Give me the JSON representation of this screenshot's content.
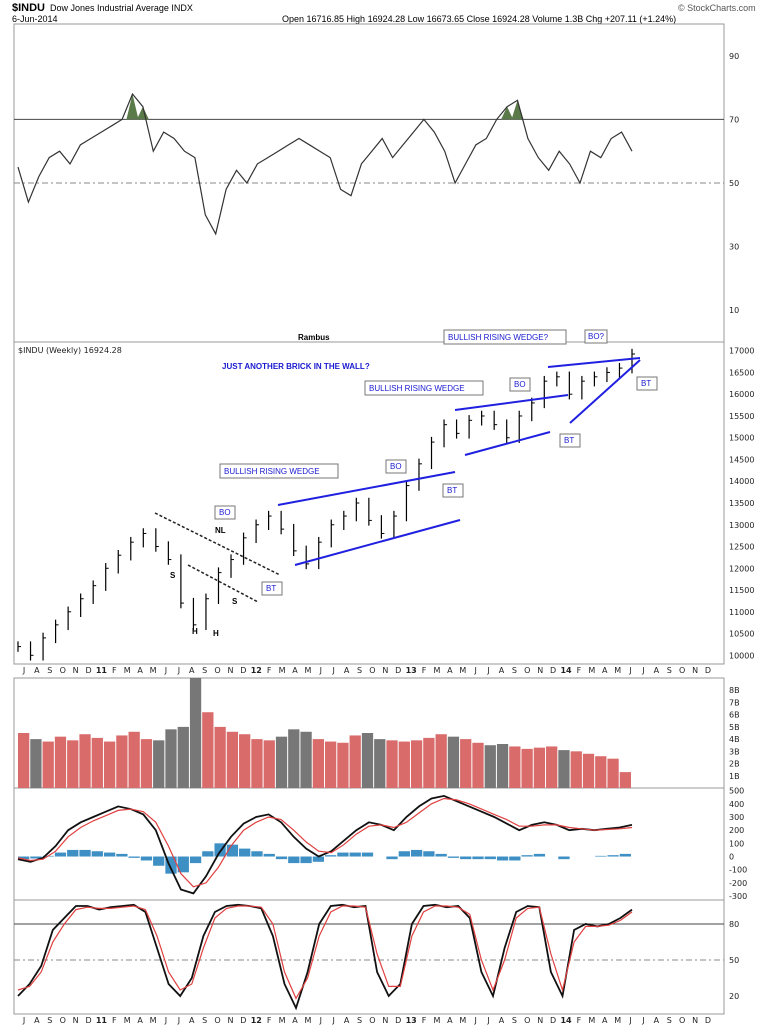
{
  "header": {
    "symbol": "$INDU",
    "name": "Dow Jones Industrial Average INDX",
    "date": "6-Jun-2014",
    "ohlc": "Open 16716.85  High 16924.28  Low 16673.65  Close 16924.28  Volume 1.3B  Chg +207.11 (+1.24%)",
    "credit": "© StockCharts.com"
  },
  "author": "Rambus",
  "price_legend": "$INDU (Weekly) 16924.28",
  "title_note": "JUST ANOTHER BRICK IN THE WALL?",
  "annotations": {
    "wedge1": "BULLISH RISING WEDGE",
    "wedge2": "BULLISH RISING WEDGE",
    "wedge3": "BULLISH RISING WEDGE?",
    "bo1": "BO",
    "bo2": "BO",
    "bo3": "BO",
    "bo4": "BO?",
    "bt1": "BT",
    "bt2": "BT",
    "bt3": "BT",
    "bt4": "BT",
    "nl": "NL",
    "s1": "S",
    "s2": "S",
    "h1": "H",
    "h2": "H"
  },
  "x_axis_labels": [
    "J",
    "A",
    "S",
    "O",
    "N",
    "D",
    "11",
    "F",
    "M",
    "A",
    "M",
    "J",
    "J",
    "A",
    "S",
    "O",
    "N",
    "D",
    "12",
    "F",
    "M",
    "A",
    "M",
    "J",
    "J",
    "A",
    "S",
    "O",
    "N",
    "D",
    "13",
    "F",
    "M",
    "A",
    "M",
    "J",
    "J",
    "A",
    "S",
    "O",
    "N",
    "D",
    "14",
    "F",
    "M",
    "A",
    "M",
    "J",
    "J",
    "A",
    "S",
    "O",
    "N",
    "D"
  ],
  "chart_data": [
    {
      "type": "line",
      "panel": "RSI",
      "y_ticks": [
        10,
        30,
        50,
        70,
        90
      ],
      "ylim": [
        0,
        100
      ],
      "reference_lines": [
        70,
        50
      ],
      "values": [
        55,
        44,
        52,
        58,
        60,
        56,
        62,
        64,
        66,
        68,
        70,
        78,
        74,
        60,
        66,
        64,
        60,
        58,
        40,
        34,
        48,
        54,
        50,
        56,
        58,
        60,
        62,
        64,
        62,
        60,
        58,
        48,
        46,
        56,
        60,
        64,
        58,
        62,
        66,
        70,
        66,
        60,
        50,
        56,
        62,
        64,
        70,
        74,
        76,
        64,
        58,
        54,
        60,
        56,
        50,
        60,
        58,
        64,
        66,
        60
      ]
    },
    {
      "type": "line",
      "panel": "price",
      "series_name": "$INDU (Weekly)",
      "y_ticks": [
        10000,
        10500,
        11000,
        11500,
        12000,
        12500,
        13000,
        13500,
        14000,
        14500,
        15000,
        15500,
        16000,
        16500,
        17000
      ],
      "ylim": [
        9800,
        17200
      ],
      "last": 16924.28,
      "values": [
        10200,
        10000,
        10400,
        10700,
        11000,
        11300,
        11600,
        12000,
        12300,
        12600,
        12800,
        12500,
        12200,
        11200,
        10700,
        11300,
        11900,
        12200,
        12700,
        13000,
        13200,
        12900,
        12400,
        12100,
        12600,
        13000,
        13200,
        13500,
        13100,
        12800,
        13200,
        13900,
        14400,
        14900,
        15300,
        15100,
        15400,
        15500,
        15300,
        15000,
        15500,
        15800,
        16300,
        16400,
        16000,
        16300,
        16400,
        16500,
        16600,
        16924
      ]
    },
    {
      "type": "bar",
      "panel": "volume",
      "y_ticks": [
        "1B",
        "2B",
        "3B",
        "4B",
        "5B",
        "6B",
        "7B",
        "8B"
      ],
      "ylim": [
        0,
        9
      ],
      "values": [
        4.5,
        4.0,
        3.8,
        4.2,
        3.9,
        4.4,
        4.1,
        3.8,
        4.3,
        4.6,
        4.0,
        3.9,
        4.8,
        5.0,
        9.0,
        6.2,
        5.0,
        4.6,
        4.4,
        4.0,
        3.9,
        4.2,
        4.8,
        4.6,
        4.0,
        3.8,
        3.7,
        4.3,
        4.5,
        4.0,
        3.9,
        3.8,
        3.9,
        4.1,
        4.4,
        4.2,
        4.0,
        3.7,
        3.5,
        3.6,
        3.4,
        3.2,
        3.3,
        3.4,
        3.1,
        3.0,
        2.8,
        2.6,
        2.4,
        1.3
      ]
    },
    {
      "type": "line",
      "panel": "MACD",
      "y_ticks": [
        -300,
        -200,
        -100,
        0,
        100,
        200,
        300,
        400,
        500
      ],
      "ylim": [
        -330,
        520
      ],
      "series": [
        {
          "values": [
            -20,
            -40,
            -10,
            80,
            200,
            260,
            300,
            340,
            380,
            360,
            320,
            200,
            -50,
            -250,
            -280,
            -150,
            20,
            150,
            250,
            300,
            320,
            260,
            150,
            60,
            0,
            40,
            120,
            200,
            260,
            240,
            200,
            300,
            380,
            440,
            460,
            420,
            380,
            340,
            300,
            250,
            200,
            240,
            260,
            240,
            200,
            210,
            200,
            210,
            220,
            240
          ]
        },
        {
          "values": [
            -10,
            -30,
            -20,
            40,
            150,
            220,
            270,
            310,
            350,
            360,
            340,
            260,
            80,
            -130,
            -230,
            -200,
            -80,
            80,
            200,
            260,
            300,
            280,
            200,
            110,
            40,
            30,
            90,
            170,
            230,
            240,
            220,
            260,
            330,
            400,
            440,
            430,
            400,
            360,
            320,
            280,
            230,
            230,
            240,
            240,
            220,
            210,
            200,
            205,
            210,
            220
          ]
        }
      ],
      "histogram": [
        -20,
        -15,
        5,
        30,
        50,
        50,
        40,
        30,
        20,
        -10,
        -30,
        -70,
        -130,
        -120,
        -50,
        40,
        100,
        90,
        60,
        40,
        20,
        -20,
        -50,
        -50,
        -40,
        10,
        30,
        30,
        30,
        0,
        -20,
        40,
        50,
        40,
        20,
        -10,
        -20,
        -20,
        -20,
        -30,
        -30,
        10,
        20,
        0,
        -20,
        0,
        0,
        5,
        10,
        20
      ]
    },
    {
      "type": "line",
      "panel": "Stochastic",
      "y_ticks": [
        20,
        50,
        80
      ],
      "ylim": [
        5,
        100
      ],
      "reference_lines": [
        80,
        50
      ],
      "series": [
        {
          "values": [
            20,
            30,
            45,
            75,
            85,
            95,
            95,
            92,
            94,
            95,
            96,
            90,
            60,
            30,
            20,
            35,
            70,
            90,
            95,
            96,
            95,
            93,
            70,
            30,
            10,
            40,
            80,
            95,
            96,
            94,
            95,
            40,
            20,
            30,
            80,
            95,
            96,
            94,
            95,
            85,
            40,
            20,
            60,
            90,
            95,
            94,
            40,
            20,
            75,
            80,
            78,
            80,
            85,
            92
          ]
        },
        {
          "values": [
            25,
            28,
            40,
            65,
            80,
            92,
            94,
            93,
            93,
            94,
            95,
            92,
            70,
            40,
            25,
            30,
            60,
            85,
            93,
            95,
            95,
            94,
            80,
            40,
            18,
            35,
            70,
            90,
            95,
            95,
            94,
            55,
            28,
            28,
            70,
            90,
            95,
            95,
            94,
            88,
            50,
            25,
            50,
            85,
            93,
            94,
            55,
            25,
            65,
            78,
            78,
            79,
            83,
            90
          ]
        }
      ]
    }
  ]
}
